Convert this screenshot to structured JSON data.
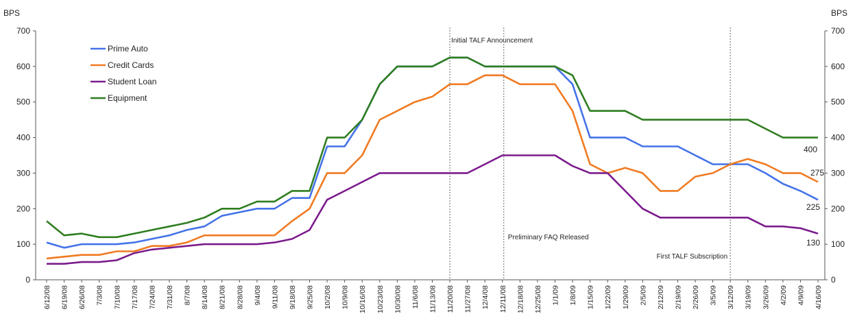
{
  "chart_data": {
    "type": "line",
    "ylabel_left": "BPS",
    "ylabel_right": "BPS",
    "ylim": [
      0,
      700
    ],
    "yticks": [
      0,
      100,
      200,
      300,
      400,
      500,
      600,
      700
    ],
    "grid": false,
    "legend_position": "top-left",
    "x": [
      "6/12/08",
      "6/19/08",
      "6/26/08",
      "7/3/08",
      "7/10/08",
      "7/17/08",
      "7/24/08",
      "7/31/08",
      "8/7/08",
      "8/14/08",
      "8/21/08",
      "8/28/08",
      "9/4/08",
      "9/11/08",
      "9/18/08",
      "9/25/08",
      "10/2/08",
      "10/9/08",
      "10/16/08",
      "10/23/08",
      "10/30/08",
      "11/6/08",
      "11/13/08",
      "11/20/08",
      "11/27/08",
      "12/4/08",
      "12/11/08",
      "12/18/08",
      "12/25/08",
      "1/1/09",
      "1/8/09",
      "1/15/09",
      "1/22/09",
      "1/29/09",
      "2/5/09",
      "2/12/09",
      "2/19/09",
      "2/26/09",
      "3/5/09",
      "3/12/09",
      "3/19/09",
      "3/26/09",
      "4/2/09",
      "4/9/09",
      "4/16/09"
    ],
    "series": [
      {
        "name": "Prime Auto",
        "color": "#4472e8",
        "values": [
          105,
          90,
          100,
          100,
          100,
          105,
          115,
          125,
          140,
          150,
          180,
          190,
          200,
          200,
          230,
          230,
          375,
          375,
          450,
          550,
          600,
          600,
          600,
          625,
          625,
          600,
          600,
          600,
          600,
          600,
          550,
          400,
          400,
          400,
          375,
          375,
          375,
          350,
          325,
          325,
          325,
          300,
          270,
          250,
          225
        ]
      },
      {
        "name": "Credit Cards",
        "color": "#f07a21",
        "values": [
          60,
          65,
          70,
          70,
          80,
          80,
          95,
          95,
          105,
          125,
          125,
          125,
          125,
          125,
          165,
          200,
          300,
          300,
          350,
          450,
          475,
          500,
          515,
          550,
          550,
          575,
          575,
          550,
          550,
          550,
          475,
          325,
          300,
          315,
          300,
          250,
          250,
          290,
          300,
          325,
          340,
          325,
          300,
          300,
          275
        ]
      },
      {
        "name": "Student Loan",
        "color": "#7b1b8c",
        "values": [
          45,
          45,
          50,
          50,
          55,
          75,
          85,
          90,
          95,
          100,
          100,
          100,
          100,
          105,
          115,
          140,
          225,
          250,
          275,
          300,
          300,
          300,
          300,
          300,
          300,
          325,
          350,
          350,
          350,
          350,
          320,
          300,
          300,
          250,
          200,
          175,
          175,
          175,
          175,
          175,
          175,
          150,
          150,
          145,
          130
        ]
      },
      {
        "name": "Equipment",
        "color": "#2e7d1f",
        "values": [
          165,
          125,
          130,
          120,
          120,
          130,
          140,
          150,
          160,
          175,
          200,
          200,
          220,
          220,
          250,
          250,
          400,
          400,
          450,
          550,
          600,
          600,
          600,
          625,
          625,
          600,
          600,
          600,
          600,
          600,
          575,
          475,
          475,
          475,
          450,
          450,
          450,
          450,
          450,
          450,
          450,
          425,
          400,
          400,
          400
        ]
      }
    ],
    "end_labels": [
      "400",
      "275",
      "225",
      "130"
    ],
    "events": [
      {
        "label": "Initial TALF Announcement",
        "x_index": 23
      },
      {
        "label": "Preliminary FAQ Released",
        "x_index": 26
      },
      {
        "label": "First TALF Subscription",
        "x_index": 39
      }
    ]
  }
}
